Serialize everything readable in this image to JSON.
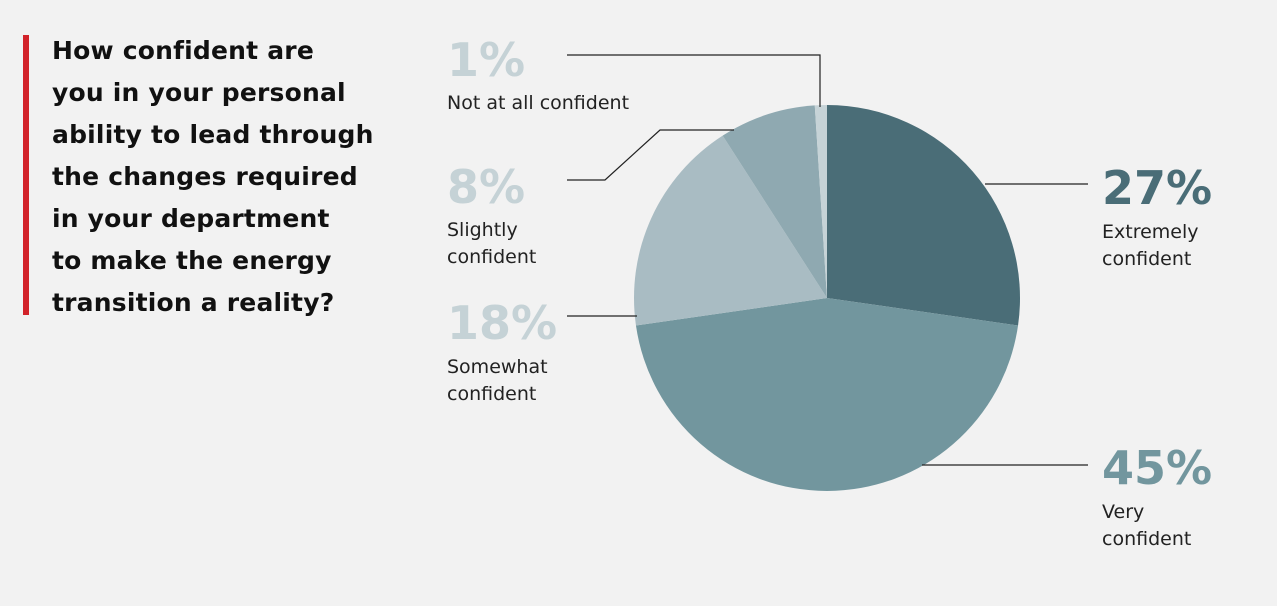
{
  "question": "How confident are you in your personal ability to lead through the changes required in your department to make the energy transition a reality?",
  "question_lines": [
    "How confident are",
    "you in your personal",
    "ability to lead through",
    "the changes required",
    "in your department",
    "to make the energy",
    "transition a reality?"
  ],
  "colors": {
    "accent": "#d2232a",
    "extremely": "#4a6d77",
    "very": "#72969e",
    "somewhat": "#a9bcc3",
    "slightly": "#8fa9b1",
    "not_at_all": "#c6d3d7"
  },
  "chart_data": {
    "type": "pie",
    "start_angle_deg": 0,
    "direction": "clockwise",
    "slices": [
      {
        "key": "extremely",
        "value": 27,
        "pct_label": "27%",
        "label_lines": [
          "Extremely",
          "confident"
        ]
      },
      {
        "key": "very",
        "value": 45,
        "pct_label": "45%",
        "label_lines": [
          "Very",
          "confident"
        ]
      },
      {
        "key": "somewhat",
        "value": 18,
        "pct_label": "18%",
        "label_lines": [
          "Somewhat",
          "confident"
        ]
      },
      {
        "key": "slightly",
        "value": 8,
        "pct_label": "8%",
        "label_lines": [
          "Slightly",
          "confident"
        ]
      },
      {
        "key": "not_at_all",
        "value": 1,
        "pct_label": "1%",
        "label_lines": [
          "Not at all confident"
        ]
      }
    ]
  }
}
